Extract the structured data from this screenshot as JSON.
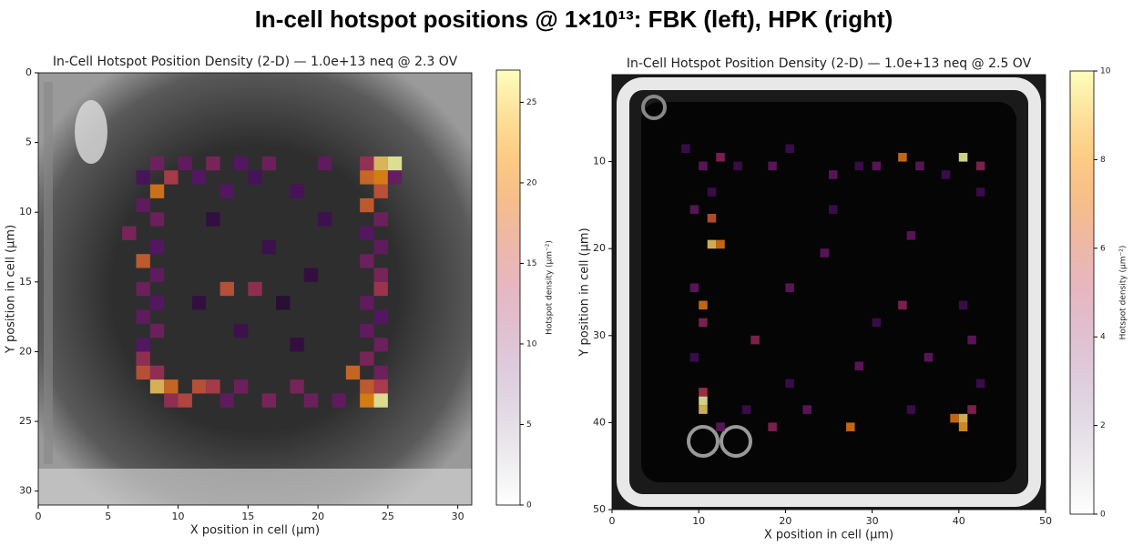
{
  "title": "In-cell hotspot positions @ 1×10¹³: FBK (left), HPK (right)",
  "chart_data": [
    {
      "type": "heatmap",
      "title": "In-Cell Hotspot Position Density (2-D) — 1.0e+13 neq @ 2.3 OV",
      "xlabel": "X position in cell (µm)",
      "ylabel": "Y position in cell (µm)",
      "clabel": "Hotspot density (µm⁻²)",
      "colormap": "inferno",
      "yinverted": true,
      "xlim": [
        0,
        31
      ],
      "ylim": [
        0,
        31
      ],
      "xticks": [
        0,
        5,
        10,
        15,
        20,
        25,
        30
      ],
      "yticks": [
        0,
        5,
        10,
        15,
        20,
        25,
        30
      ],
      "clim": [
        0,
        27
      ],
      "cticks": [
        0,
        5,
        10,
        15,
        20,
        25
      ],
      "cells": {
        "x": [
          8,
          10,
          12,
          14,
          16,
          20,
          23,
          24,
          25,
          7,
          9,
          11,
          15,
          23,
          24,
          25,
          8,
          13,
          18,
          24,
          7,
          23,
          8,
          24,
          6,
          23,
          8,
          24,
          7,
          23,
          8,
          24,
          7,
          13,
          15,
          24,
          8,
          23,
          7,
          24,
          8,
          23,
          7,
          24,
          7,
          23,
          7,
          8,
          22,
          24,
          8,
          9,
          11,
          12,
          14,
          18,
          23,
          24,
          9,
          10,
          13,
          16,
          19,
          21,
          23,
          24,
          12,
          16,
          19,
          14,
          18,
          11,
          20,
          17
        ],
        "y": [
          6,
          6,
          6,
          6,
          6,
          6,
          6,
          6,
          6,
          7,
          7,
          7,
          7,
          7,
          7,
          7,
          8,
          8,
          8,
          8,
          9,
          9,
          10,
          10,
          11,
          11,
          12,
          12,
          13,
          13,
          14,
          14,
          15,
          15,
          15,
          15,
          16,
          16,
          17,
          17,
          18,
          18,
          19,
          19,
          20,
          20,
          21,
          21,
          21,
          21,
          22,
          22,
          22,
          22,
          22,
          22,
          22,
          22,
          23,
          23,
          23,
          23,
          23,
          23,
          23,
          23,
          10,
          12,
          14,
          18,
          19,
          16,
          10,
          16
        ],
        "values": [
          9,
          8,
          10,
          7,
          9,
          8,
          12,
          24,
          27,
          6,
          14,
          7,
          6,
          18,
          20,
          8,
          19,
          7,
          6,
          16,
          8,
          17,
          9,
          9,
          10,
          7,
          7,
          8,
          17,
          9,
          8,
          10,
          9,
          16,
          12,
          13,
          7,
          8,
          8,
          7,
          9,
          8,
          7,
          9,
          12,
          10,
          16,
          12,
          18,
          9,
          24,
          18,
          16,
          14,
          9,
          10,
          17,
          14,
          12,
          15,
          8,
          10,
          9,
          8,
          20,
          27,
          4,
          5,
          4,
          5,
          4,
          4,
          5,
          3
        ]
      }
    },
    {
      "type": "heatmap",
      "title": "In-Cell Hotspot Position Density (2-D) — 1.0e+13 neq @ 2.5 OV",
      "xlabel": "X position in cell (µm)",
      "ylabel": "Y position in cell (µm)",
      "clabel": "Hotspot density (µm⁻²)",
      "colormap": "inferno",
      "yinverted": true,
      "xlim": [
        0,
        50
      ],
      "ylim": [
        0,
        50
      ],
      "xticks": [
        0,
        10,
        20,
        30,
        40,
        50
      ],
      "yticks": [
        10,
        20,
        30,
        40,
        50
      ],
      "clim": [
        0,
        10
      ],
      "cticks": [
        0,
        2,
        4,
        6,
        8,
        10
      ],
      "cells": {
        "x": [
          8,
          10,
          12,
          14,
          18,
          20,
          25,
          28,
          30,
          33,
          35,
          38,
          40,
          42,
          42,
          11,
          9,
          11,
          11,
          12,
          9,
          10,
          10,
          9,
          10,
          10,
          10,
          12,
          16,
          20,
          24,
          30,
          33,
          36,
          40,
          41,
          42,
          41,
          39,
          40,
          40,
          34,
          27,
          22,
          18,
          15,
          25,
          28,
          20,
          34
        ],
        "y": [
          8,
          10,
          9,
          10,
          10,
          8,
          11,
          10,
          10,
          9,
          10,
          11,
          9,
          10,
          13,
          13,
          15,
          16,
          19,
          19,
          24,
          26,
          28,
          32,
          36,
          37,
          38,
          40,
          30,
          24,
          20,
          28,
          26,
          32,
          26,
          30,
          35,
          38,
          39,
          39,
          40,
          38,
          40,
          38,
          40,
          38,
          15,
          33,
          35,
          18
        ],
        "values": [
          2,
          3,
          4,
          2,
          3,
          2,
          3,
          2,
          3,
          7,
          3,
          2,
          10,
          4,
          2,
          2,
          3,
          6,
          9,
          7,
          3,
          7,
          4,
          2,
          5,
          10,
          9,
          3,
          4,
          3,
          3,
          2,
          4,
          3,
          2,
          3,
          2,
          4,
          7,
          9,
          8,
          2,
          7,
          3,
          4,
          2,
          2,
          3,
          2,
          3
        ]
      }
    }
  ]
}
